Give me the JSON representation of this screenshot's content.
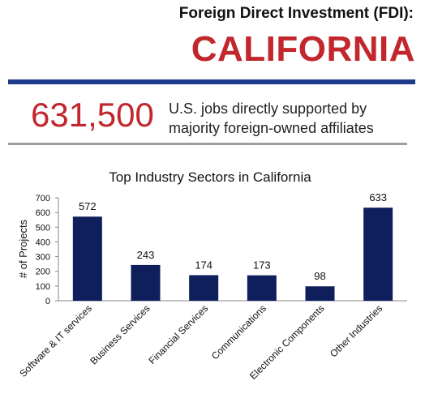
{
  "header": {
    "subtitle": "Foreign Direct Investment (FDI):",
    "title": "CALIFORNIA"
  },
  "stat": {
    "value": "631,500",
    "description_line1": "U.S. jobs directly supported by",
    "description_line2": "majority foreign-owned affiliates"
  },
  "colors": {
    "accent_red": "#c1272d",
    "rule_blue": "#1f3a8a",
    "bar_navy": "#0f1f5c",
    "rule_gray": "#9e9e9e"
  },
  "chart_data": {
    "type": "bar",
    "title": "Top Industry Sectors in California",
    "ylabel": "# of Projects",
    "xlabel": "",
    "ylim": [
      0,
      700
    ],
    "yticks": [
      0,
      100,
      200,
      300,
      400,
      500,
      600,
      700
    ],
    "categories": [
      "Software & IT services",
      "Business Services",
      "Financial Services",
      "Communications",
      "Electronic Components",
      "Other Industries"
    ],
    "values": [
      572,
      243,
      174,
      173,
      98,
      633
    ],
    "grid": false,
    "legend": "none"
  }
}
